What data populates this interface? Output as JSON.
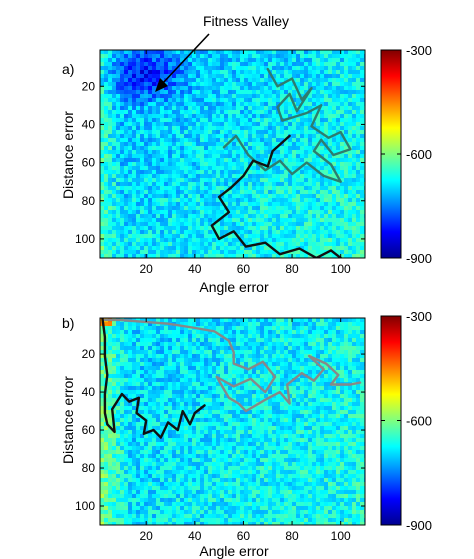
{
  "annotation": "Fitness Valley",
  "colorbar": {
    "min": -900,
    "max": -300,
    "ticks": [
      -300,
      -600,
      -900
    ],
    "colormap": "jet"
  },
  "chart_data": [
    {
      "type": "heatmap",
      "panel_label": "a)",
      "xlabel": "Angle error",
      "ylabel": "Distance error",
      "xlim": [
        1,
        110
      ],
      "ylim": [
        1,
        110
      ],
      "y_reversed": true,
      "xticks": [
        20,
        40,
        60,
        80,
        100
      ],
      "yticks": [
        20,
        40,
        60,
        80,
        100
      ],
      "grid": false,
      "annotation": {
        "text": "Fitness Valley",
        "points_to": [
          22,
          18
        ]
      },
      "series": [
        {
          "color": "#2e7d6e",
          "points": [
            [
              70,
              11
            ],
            [
              74,
              20
            ],
            [
              80,
              16
            ],
            [
              84,
              27
            ],
            [
              88,
              21
            ],
            [
              82,
              33
            ],
            [
              79,
              24
            ],
            [
              74,
              31
            ],
            [
              76,
              38
            ],
            [
              86,
              34
            ],
            [
              92,
              30
            ],
            [
              88,
              41
            ],
            [
              95,
              47
            ],
            [
              100,
              44
            ],
            [
              104,
              53
            ],
            [
              97,
              56
            ],
            [
              92,
              48
            ],
            [
              89,
              54
            ],
            [
              96,
              61
            ],
            [
              100,
              70
            ],
            [
              93,
              67
            ],
            [
              86,
              60
            ],
            [
              80,
              66
            ],
            [
              75,
              59
            ],
            [
              69,
              64
            ],
            [
              62,
              56
            ],
            [
              57,
              46
            ],
            [
              52,
              52
            ]
          ]
        },
        {
          "color": "#111111",
          "points": [
            [
              79,
              46
            ],
            [
              72,
              54
            ],
            [
              70,
              62
            ],
            [
              64,
              59
            ],
            [
              60,
              67
            ],
            [
              55,
              73
            ],
            [
              50,
              78
            ],
            [
              54,
              86
            ],
            [
              47,
              93
            ],
            [
              50,
              100
            ],
            [
              56,
              96
            ],
            [
              61,
              104
            ],
            [
              69,
              102
            ],
            [
              75,
              108
            ],
            [
              83,
              105
            ],
            [
              90,
              110
            ],
            [
              96,
              106
            ],
            [
              100,
              110
            ]
          ]
        }
      ]
    },
    {
      "type": "heatmap",
      "panel_label": "b)",
      "xlabel": "Angle error",
      "ylabel": "Distance error",
      "xlim": [
        1,
        110
      ],
      "ylim": [
        1,
        110
      ],
      "y_reversed": true,
      "xticks": [
        20,
        40,
        60,
        80,
        100
      ],
      "yticks": [
        20,
        40,
        60,
        80,
        100
      ],
      "grid": false,
      "series": [
        {
          "color": "#888888",
          "points": [
            [
              3,
              2
            ],
            [
              9,
              2
            ],
            [
              19,
              3
            ],
            [
              29,
              4
            ],
            [
              39,
              6
            ],
            [
              48,
              8
            ],
            [
              54,
              13
            ],
            [
              56,
              19
            ],
            [
              56,
              25
            ],
            [
              62,
              28
            ],
            [
              68,
              24
            ],
            [
              73,
              32
            ],
            [
              69,
              40
            ],
            [
              63,
              33
            ],
            [
              56,
              37
            ],
            [
              49,
              32
            ],
            [
              54,
              43
            ],
            [
              58,
              46
            ],
            [
              61,
              50
            ],
            [
              69,
              44
            ],
            [
              75,
              40
            ],
            [
              79,
              46
            ],
            [
              78,
              36
            ],
            [
              84,
              30
            ],
            [
              89,
              34
            ],
            [
              93,
              28
            ],
            [
              87,
              21
            ],
            [
              94,
              25
            ],
            [
              99,
              31
            ],
            [
              96,
              36
            ],
            [
              104,
              36
            ],
            [
              108,
              35
            ]
          ]
        },
        {
          "color": "#111111",
          "points": [
            [
              2,
              1
            ],
            [
              3,
              11
            ],
            [
              3,
              21
            ],
            [
              4,
              31
            ],
            [
              3,
              41
            ],
            [
              3,
              51
            ],
            [
              4,
              57
            ],
            [
              7,
              61
            ],
            [
              6,
              49
            ],
            [
              10,
              41
            ],
            [
              13,
              45
            ],
            [
              17,
              43
            ],
            [
              16,
              51
            ],
            [
              20,
              55
            ],
            [
              19,
              62
            ],
            [
              23,
              60
            ],
            [
              26,
              64
            ],
            [
              29,
              56
            ],
            [
              33,
              60
            ],
            [
              35,
              50
            ],
            [
              38,
              57
            ],
            [
              40,
              51
            ],
            [
              44,
              47
            ]
          ]
        }
      ]
    }
  ]
}
